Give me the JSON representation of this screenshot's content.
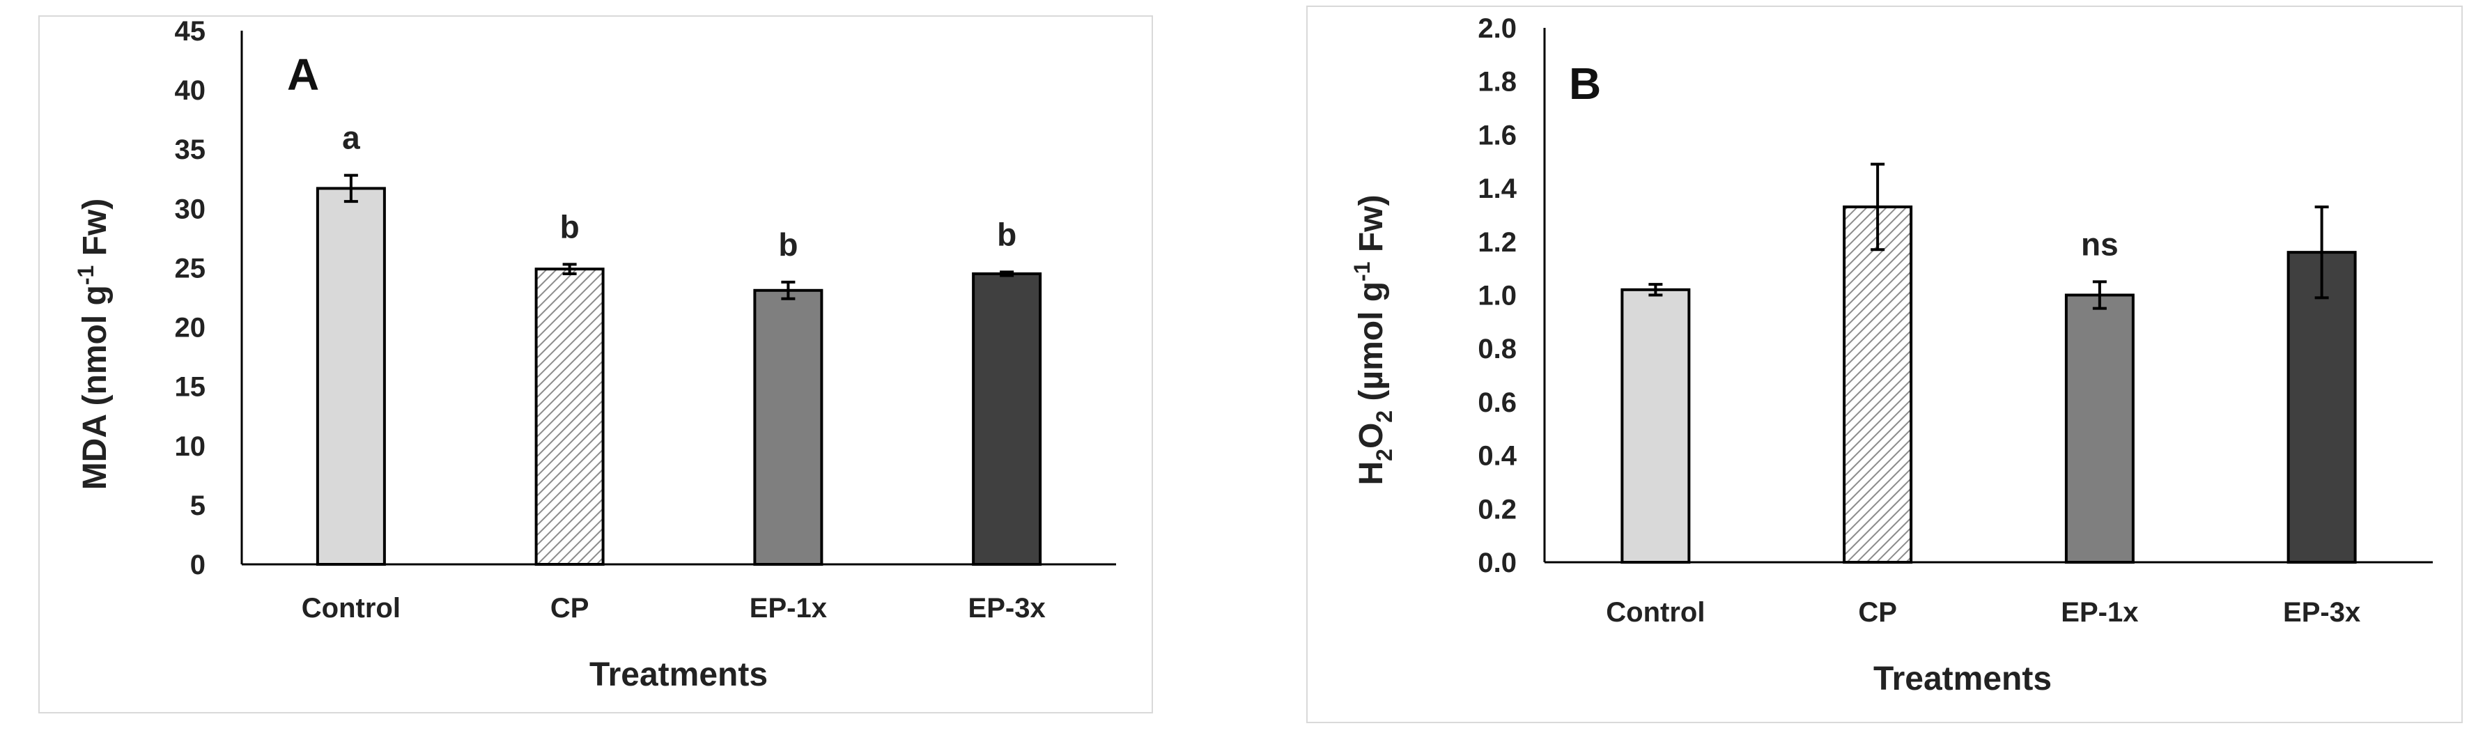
{
  "chart_data": [
    {
      "type": "bar",
      "panel_label": "A",
      "categories": [
        "Control",
        "CP",
        "EP-1x",
        "EP-3x"
      ],
      "values": [
        31.7,
        24.9,
        23.1,
        24.5
      ],
      "errors": [
        1.1,
        0.4,
        0.7,
        0.15
      ],
      "significance": [
        "a",
        "b",
        "b",
        "b"
      ],
      "fills": [
        "#d9d9d9",
        "hatched",
        "#7f7f7f",
        "#404040"
      ],
      "xlabel": "Treatments",
      "ylabel_parts": [
        "MDA (nmol g",
        "-1",
        " Fw)"
      ],
      "ylim": [
        0,
        45
      ],
      "yticks": [
        0,
        5,
        10,
        15,
        20,
        25,
        30,
        35,
        40,
        45
      ],
      "ytick_decimals": 0
    },
    {
      "type": "bar",
      "panel_label": "B",
      "categories": [
        "Control",
        "CP",
        "EP-1x",
        "EP-3x"
      ],
      "values": [
        1.02,
        1.33,
        1.0,
        1.16
      ],
      "errors": [
        0.02,
        0.16,
        0.05,
        0.17
      ],
      "significance": [
        "",
        "",
        "ns",
        ""
      ],
      "fills": [
        "#d9d9d9",
        "hatched",
        "#7f7f7f",
        "#404040"
      ],
      "xlabel": "Treatments",
      "ylabel_parts": [
        "H",
        "2",
        "O",
        "2",
        " (µmol g",
        "-1",
        " Fw)"
      ],
      "ylim": [
        0,
        2.0
      ],
      "yticks": [
        0,
        0.2,
        0.4,
        0.6,
        0.8,
        1.0,
        1.2,
        1.4,
        1.6,
        1.8,
        2.0
      ],
      "ytick_decimals": 1
    }
  ]
}
